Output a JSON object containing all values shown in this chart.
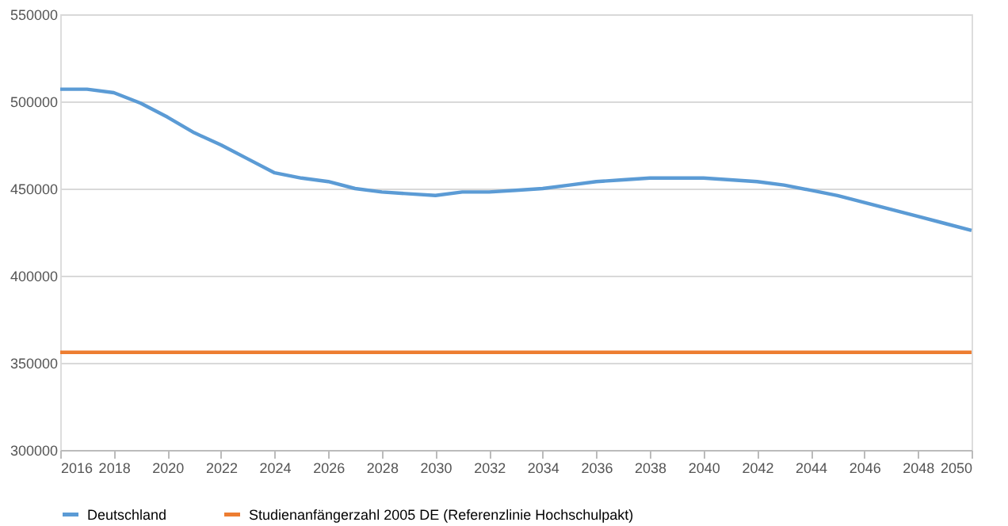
{
  "chart_data": {
    "type": "line",
    "x": [
      2016,
      2017,
      2018,
      2019,
      2020,
      2021,
      2022,
      2023,
      2024,
      2025,
      2026,
      2027,
      2028,
      2029,
      2030,
      2031,
      2032,
      2033,
      2034,
      2035,
      2036,
      2037,
      2038,
      2039,
      2040,
      2041,
      2042,
      2043,
      2044,
      2045,
      2046,
      2047,
      2048,
      2049,
      2050
    ],
    "series": [
      {
        "name": "Deutschland",
        "color": "#5b9bd5",
        "values": [
          507000,
          507000,
          505000,
          499000,
          491000,
          482000,
          475000,
          467000,
          459000,
          456000,
          454000,
          450000,
          448000,
          447000,
          446000,
          448000,
          448000,
          449000,
          450000,
          452000,
          454000,
          455000,
          456000,
          456000,
          456000,
          455000,
          454000,
          452000,
          449000,
          446000,
          442000,
          438000,
          434000,
          430000,
          426000
        ]
      },
      {
        "name": "Studienanfängerzahl 2005 DE (Referenzlinie Hochschulpakt)",
        "color": "#ed7d31",
        "values": [
          356000,
          356000,
          356000,
          356000,
          356000,
          356000,
          356000,
          356000,
          356000,
          356000,
          356000,
          356000,
          356000,
          356000,
          356000,
          356000,
          356000,
          356000,
          356000,
          356000,
          356000,
          356000,
          356000,
          356000,
          356000,
          356000,
          356000,
          356000,
          356000,
          356000,
          356000,
          356000,
          356000,
          356000,
          356000
        ]
      }
    ],
    "xlim": [
      2016,
      2050
    ],
    "xticks": [
      2016,
      2018,
      2020,
      2022,
      2024,
      2026,
      2028,
      2030,
      2032,
      2034,
      2036,
      2038,
      2040,
      2042,
      2044,
      2046,
      2048,
      2050
    ],
    "ylim": [
      300000,
      550000
    ],
    "yticks": [
      300000,
      350000,
      400000,
      450000,
      500000,
      550000
    ],
    "grid": "y",
    "legend": "bottom",
    "marker": "none",
    "line_style": "solid"
  }
}
